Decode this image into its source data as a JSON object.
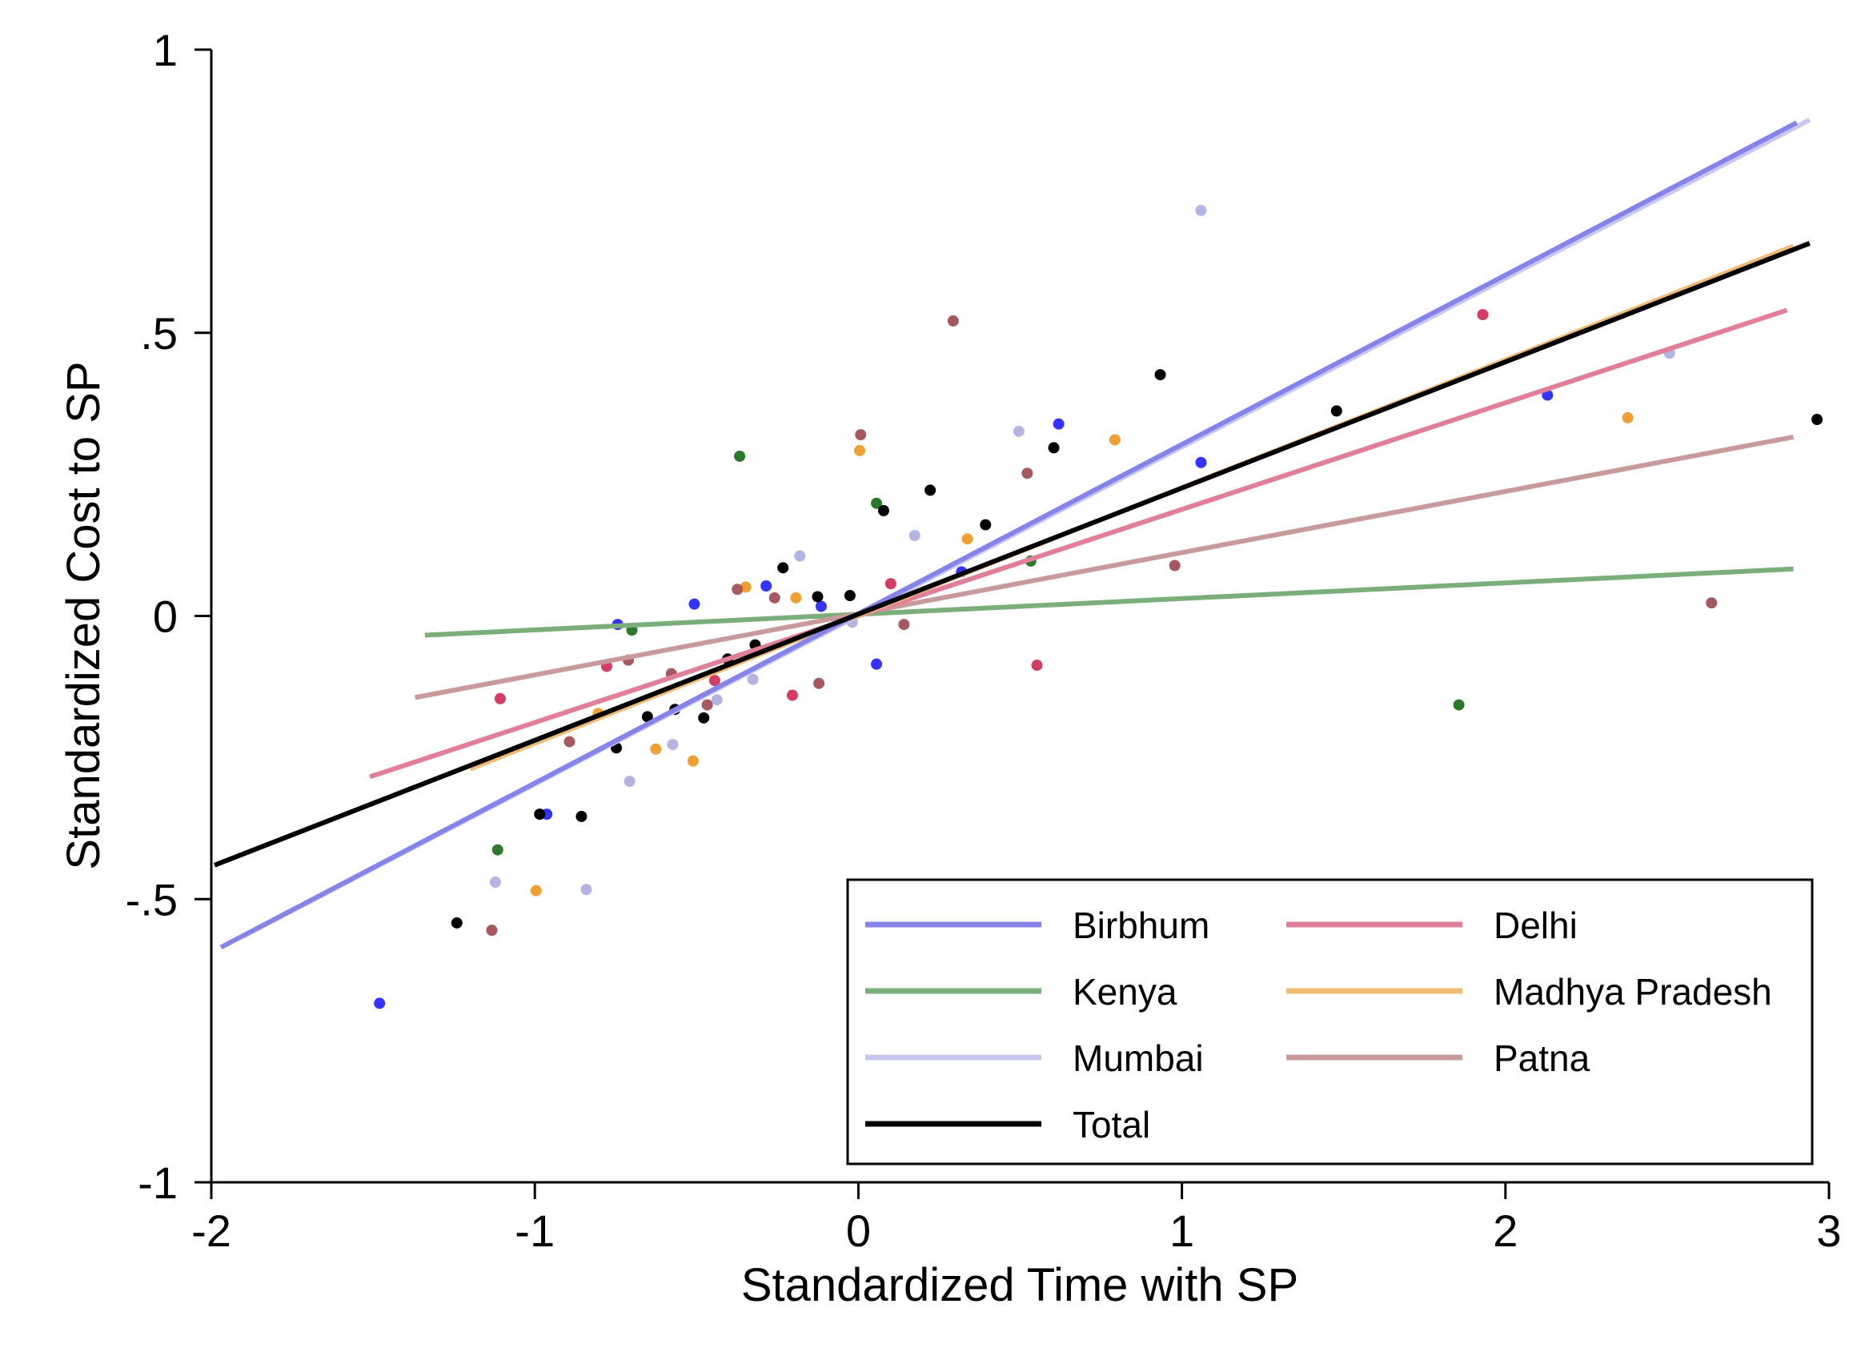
{
  "chart_data": {
    "type": "scatter",
    "xlabel": "Standardized Time with SP",
    "ylabel": "Standardized Cost to SP",
    "xlim": [
      -2,
      3
    ],
    "ylim": [
      -1,
      1
    ],
    "xticks": [
      {
        "value": -2,
        "label": "-2"
      },
      {
        "value": -1,
        "label": "-1"
      },
      {
        "value": 0,
        "label": "0"
      },
      {
        "value": 1,
        "label": "1"
      },
      {
        "value": 2,
        "label": "2"
      },
      {
        "value": 3,
        "label": "3"
      }
    ],
    "yticks": [
      {
        "value": 1,
        "label": "1"
      },
      {
        "value": 0.5,
        "label": ".5"
      },
      {
        "value": 0,
        "label": "0"
      },
      {
        "value": -0.5,
        "label": "-.5"
      },
      {
        "value": -1,
        "label": "-1"
      }
    ],
    "grid": false,
    "legend": "bottom-right",
    "series": [
      {
        "name": "Birbhum",
        "line_color": "#8484ea",
        "point_color": "#3333ff",
        "fit": {
          "x": [
            -1.97,
            2.9
          ],
          "y": [
            -0.585,
            0.871
          ]
        },
        "points": [
          [
            -1.48,
            -0.684
          ],
          [
            -0.963,
            -0.35
          ],
          [
            -0.744,
            -0.015
          ],
          [
            -0.507,
            0.021
          ],
          [
            -0.285,
            0.053
          ],
          [
            -0.115,
            0.017
          ],
          [
            0.056,
            -0.085
          ],
          [
            0.319,
            0.078
          ],
          [
            0.619,
            0.339
          ],
          [
            1.059,
            0.271
          ],
          [
            2.13,
            0.39
          ]
        ]
      },
      {
        "name": "Delhi",
        "line_color": "#e27f98",
        "point_color": "#d43c64",
        "fit": {
          "x": [
            -1.51,
            2.87
          ],
          "y": [
            -0.284,
            0.54
          ]
        },
        "points": [
          [
            -1.107,
            -0.146
          ],
          [
            -0.778,
            -0.089
          ],
          [
            -0.444,
            -0.114
          ],
          [
            -0.204,
            -0.14
          ],
          [
            0.1,
            0.057
          ],
          [
            0.552,
            -0.087
          ],
          [
            1.93,
            0.532
          ]
        ]
      },
      {
        "name": "Kenya",
        "line_color": "#7aae7a",
        "point_color": "#2b7a2b",
        "fit": {
          "x": [
            -1.34,
            2.89
          ],
          "y": [
            -0.034,
            0.083
          ]
        },
        "points": [
          [
            -1.115,
            -0.413
          ],
          [
            -0.7,
            -0.025
          ],
          [
            -0.367,
            0.282
          ],
          [
            0.056,
            0.199
          ],
          [
            0.533,
            0.097
          ],
          [
            1.856,
            -0.157
          ]
        ]
      },
      {
        "name": "Madhya Pradesh",
        "line_color": "#f2bb72",
        "point_color": "#f0a030",
        "fit": {
          "x": [
            -1.2,
            2.89
          ],
          "y": [
            -0.27,
            0.653
          ]
        },
        "points": [
          [
            -0.996,
            -0.485
          ],
          [
            -0.804,
            -0.172
          ],
          [
            -0.626,
            -0.235
          ],
          [
            -0.511,
            -0.256
          ],
          [
            -0.348,
            0.051
          ],
          [
            -0.193,
            0.032
          ],
          [
            0.004,
            0.292
          ],
          [
            0.337,
            0.136
          ],
          [
            0.793,
            0.311
          ],
          [
            2.378,
            0.35
          ]
        ]
      },
      {
        "name": "Mumbai",
        "line_color": "#c8c8ef",
        "point_color": "#b4b4e4",
        "fit": {
          "x": [
            -1.9,
            2.94
          ],
          "y": [
            -0.565,
            0.876
          ]
        },
        "points": [
          [
            -1.122,
            -0.47
          ],
          [
            -0.841,
            -0.483
          ],
          [
            -0.707,
            -0.292
          ],
          [
            -0.574,
            -0.227
          ],
          [
            -0.437,
            -0.148
          ],
          [
            -0.326,
            -0.112
          ],
          [
            -0.181,
            0.106
          ],
          [
            -0.019,
            -0.011
          ],
          [
            0.174,
            0.142
          ],
          [
            0.496,
            0.326
          ],
          [
            1.059,
            0.716
          ],
          [
            2.507,
            0.464
          ]
        ]
      },
      {
        "name": "Patna",
        "line_color": "#c99a9c",
        "point_color": "#a5595e",
        "fit": {
          "x": [
            -1.37,
            2.89
          ],
          "y": [
            -0.144,
            0.316
          ]
        },
        "points": [
          [
            -1.133,
            -0.555
          ],
          [
            -0.893,
            -0.222
          ],
          [
            -0.711,
            -0.078
          ],
          [
            -0.578,
            -0.102
          ],
          [
            -0.467,
            -0.157
          ],
          [
            -0.374,
            0.047
          ],
          [
            -0.259,
            0.032
          ],
          [
            -0.122,
            -0.119
          ],
          [
            0.007,
            0.32
          ],
          [
            0.141,
            -0.015
          ],
          [
            0.293,
            0.521
          ],
          [
            0.522,
            0.252
          ],
          [
            0.978,
            0.089
          ],
          [
            2.637,
            0.023
          ]
        ]
      },
      {
        "name": "Total",
        "line_color": "#000000",
        "point_color": "#000000",
        "fit": {
          "x": [
            -1.99,
            2.94
          ],
          "y": [
            -0.44,
            0.658
          ]
        },
        "points": [
          [
            -1.241,
            -0.542
          ],
          [
            -0.985,
            -0.35
          ],
          [
            -0.856,
            -0.354
          ],
          [
            -0.748,
            -0.233
          ],
          [
            -0.652,
            -0.178
          ],
          [
            -0.567,
            -0.165
          ],
          [
            -0.478,
            -0.18
          ],
          [
            -0.404,
            -0.076
          ],
          [
            -0.319,
            -0.051
          ],
          [
            -0.233,
            0.085
          ],
          [
            -0.126,
            0.034
          ],
          [
            -0.026,
            0.036
          ],
          [
            0.078,
            0.186
          ],
          [
            0.222,
            0.222
          ],
          [
            0.393,
            0.161
          ],
          [
            0.604,
            0.297
          ],
          [
            0.933,
            0.426
          ],
          [
            1.478,
            0.362
          ],
          [
            2.963,
            0.347
          ]
        ]
      }
    ]
  }
}
